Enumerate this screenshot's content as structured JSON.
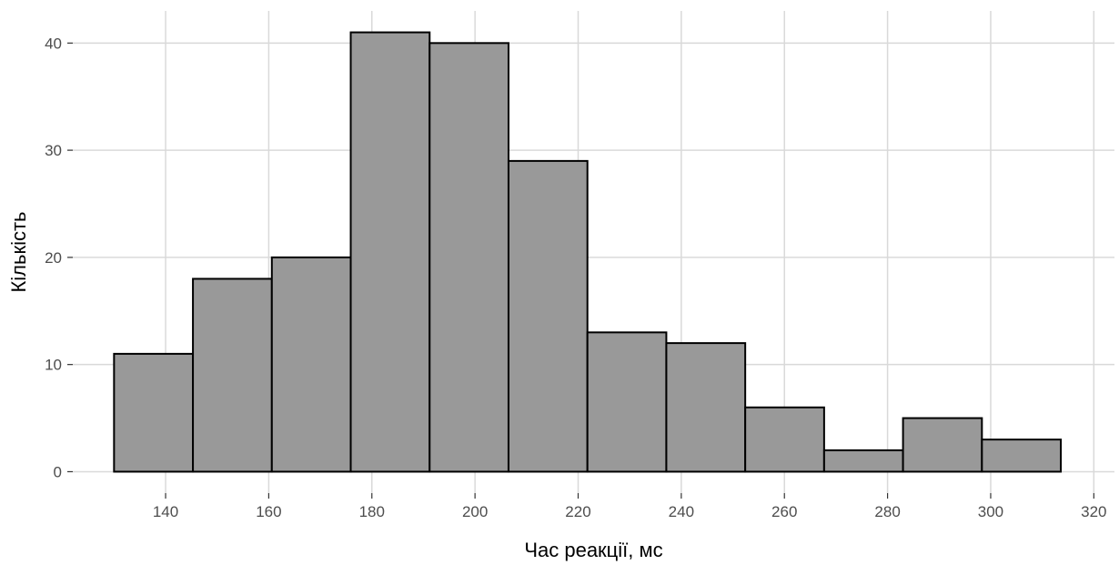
{
  "chart_data": {
    "type": "histogram",
    "title": "",
    "xlabel": "Час реакції, мс",
    "ylabel": "Кількість",
    "xlim": [
      122,
      324
    ],
    "ylim": [
      -2,
      43
    ],
    "x_ticks": [
      140,
      160,
      180,
      200,
      220,
      240,
      260,
      280,
      300,
      320
    ],
    "y_ticks": [
      0,
      10,
      20,
      30,
      40
    ],
    "bin_width": 15.3,
    "bins": [
      {
        "x0": 130.0,
        "x1": 145.3,
        "count": 11
      },
      {
        "x0": 145.3,
        "x1": 160.6,
        "count": 18
      },
      {
        "x0": 160.6,
        "x1": 175.9,
        "count": 20
      },
      {
        "x0": 175.9,
        "x1": 191.2,
        "count": 41
      },
      {
        "x0": 191.2,
        "x1": 206.5,
        "count": 40
      },
      {
        "x0": 206.5,
        "x1": 221.8,
        "count": 29
      },
      {
        "x0": 221.8,
        "x1": 237.1,
        "count": 13
      },
      {
        "x0": 237.1,
        "x1": 252.4,
        "count": 12
      },
      {
        "x0": 252.4,
        "x1": 267.7,
        "count": 6
      },
      {
        "x0": 267.7,
        "x1": 283.0,
        "count": 2
      },
      {
        "x0": 283.0,
        "x1": 298.3,
        "count": 5
      },
      {
        "x0": 298.3,
        "x1": 313.6,
        "count": 3
      }
    ],
    "grid": true,
    "legend": "none",
    "colors": {
      "bar_fill": "#999999",
      "bar_stroke": "#000000",
      "grid": "#d9d9d9",
      "background": "#ffffff"
    }
  }
}
